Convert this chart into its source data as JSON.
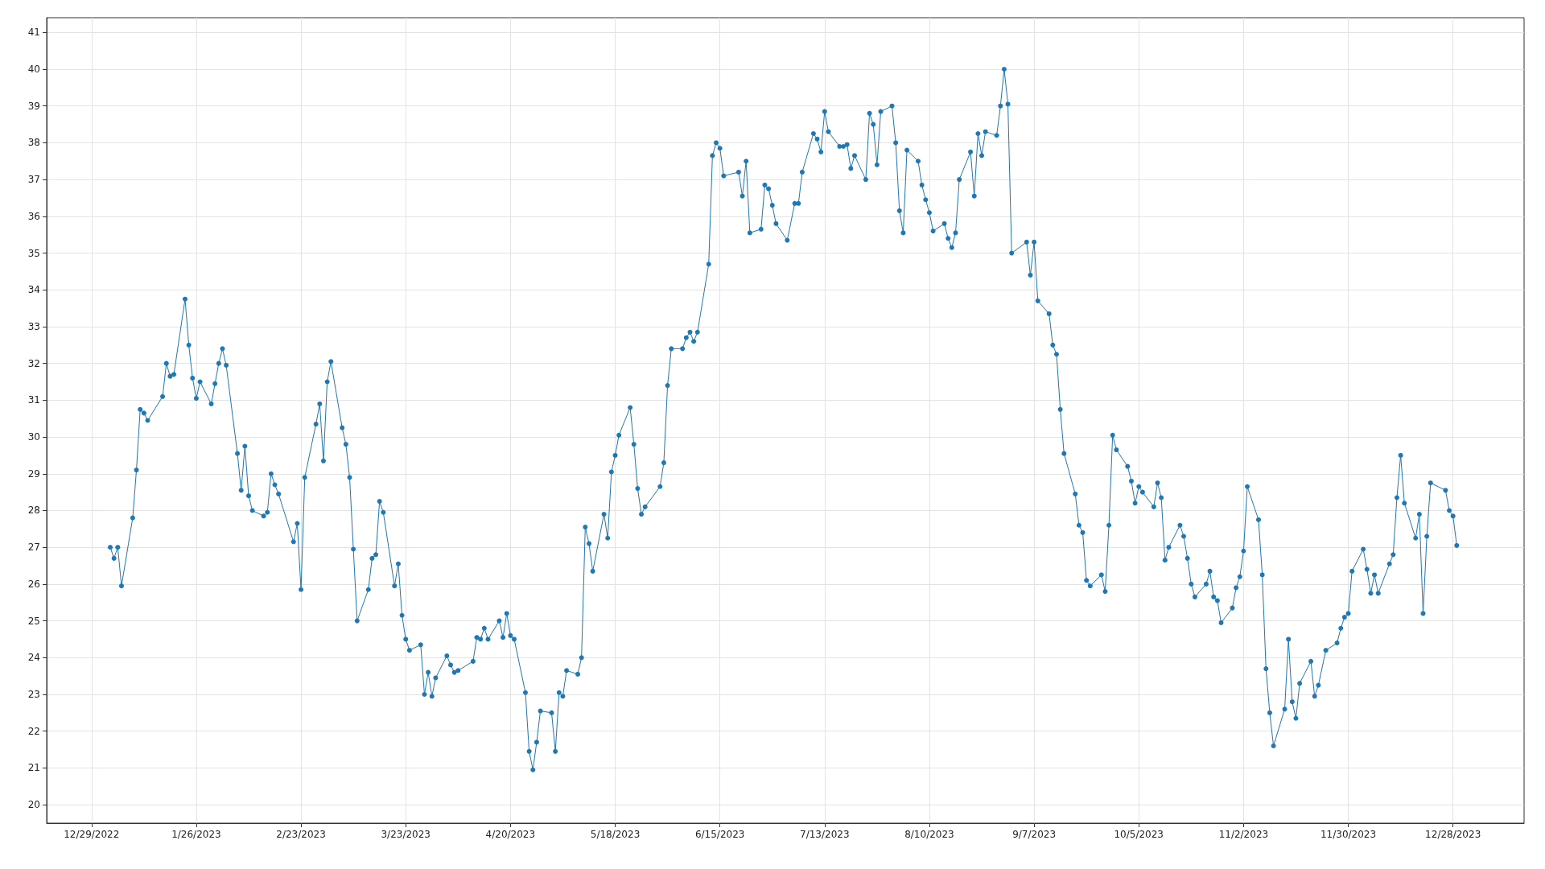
{
  "chart_data": {
    "type": "line",
    "xlim": [
      "2022-12-17",
      "2024-01-16"
    ],
    "ylim": [
      19.5,
      41.4
    ],
    "xticks": [
      {
        "value": "2022-12-29",
        "label": "12/29/2022"
      },
      {
        "value": "2023-01-26",
        "label": "1/26/2023"
      },
      {
        "value": "2023-02-23",
        "label": "2/23/2023"
      },
      {
        "value": "2023-03-23",
        "label": "3/23/2023"
      },
      {
        "value": "2023-04-20",
        "label": "4/20/2023"
      },
      {
        "value": "2023-05-18",
        "label": "5/18/2023"
      },
      {
        "value": "2023-06-15",
        "label": "6/15/2023"
      },
      {
        "value": "2023-07-13",
        "label": "7/13/2023"
      },
      {
        "value": "2023-08-10",
        "label": "8/10/2023"
      },
      {
        "value": "2023-09-07",
        "label": "9/7/2023"
      },
      {
        "value": "2023-10-05",
        "label": "10/5/2023"
      },
      {
        "value": "2023-11-02",
        "label": "11/2/2023"
      },
      {
        "value": "2023-11-30",
        "label": "11/30/2023"
      },
      {
        "value": "2023-12-28",
        "label": "12/28/2023"
      }
    ],
    "yticks": [
      20,
      21,
      22,
      23,
      24,
      25,
      26,
      27,
      28,
      29,
      30,
      31,
      32,
      33,
      34,
      35,
      36,
      37,
      38,
      39,
      40,
      41
    ],
    "grid": true,
    "marker": "circle",
    "line_style": "solid",
    "x": [
      "2023-01-03",
      "2023-01-04",
      "2023-01-05",
      "2023-01-06",
      "2023-01-09",
      "2023-01-10",
      "2023-01-11",
      "2023-01-12",
      "2023-01-13",
      "2023-01-17",
      "2023-01-18",
      "2023-01-19",
      "2023-01-20",
      "2023-01-23",
      "2023-01-24",
      "2023-01-25",
      "2023-01-26",
      "2023-01-27",
      "2023-01-30",
      "2023-01-31",
      "2023-02-01",
      "2023-02-02",
      "2023-02-03",
      "2023-02-06",
      "2023-02-07",
      "2023-02-08",
      "2023-02-09",
      "2023-02-10",
      "2023-02-13",
      "2023-02-14",
      "2023-02-15",
      "2023-02-16",
      "2023-02-17",
      "2023-02-21",
      "2023-02-22",
      "2023-02-23",
      "2023-02-24",
      "2023-02-27",
      "2023-02-28",
      "2023-03-01",
      "2023-03-02",
      "2023-03-03",
      "2023-03-06",
      "2023-03-07",
      "2023-03-08",
      "2023-03-09",
      "2023-03-10",
      "2023-03-13",
      "2023-03-14",
      "2023-03-15",
      "2023-03-16",
      "2023-03-17",
      "2023-03-20",
      "2023-03-21",
      "2023-03-22",
      "2023-03-23",
      "2023-03-24",
      "2023-03-27",
      "2023-03-28",
      "2023-03-29",
      "2023-03-30",
      "2023-03-31",
      "2023-04-03",
      "2023-04-04",
      "2023-04-05",
      "2023-04-06",
      "2023-04-10",
      "2023-04-11",
      "2023-04-12",
      "2023-04-13",
      "2023-04-14",
      "2023-04-17",
      "2023-04-18",
      "2023-04-19",
      "2023-04-20",
      "2023-04-21",
      "2023-04-24",
      "2023-04-25",
      "2023-04-26",
      "2023-04-27",
      "2023-04-28",
      "2023-05-01",
      "2023-05-02",
      "2023-05-03",
      "2023-05-04",
      "2023-05-05",
      "2023-05-08",
      "2023-05-09",
      "2023-05-10",
      "2023-05-11",
      "2023-05-12",
      "2023-05-15",
      "2023-05-16",
      "2023-05-17",
      "2023-05-18",
      "2023-05-19",
      "2023-05-22",
      "2023-05-23",
      "2023-05-24",
      "2023-05-25",
      "2023-05-26",
      "2023-05-30",
      "2023-05-31",
      "2023-06-01",
      "2023-06-02",
      "2023-06-05",
      "2023-06-06",
      "2023-06-07",
      "2023-06-08",
      "2023-06-09",
      "2023-06-12",
      "2023-06-13",
      "2023-06-14",
      "2023-06-15",
      "2023-06-16",
      "2023-06-20",
      "2023-06-21",
      "2023-06-22",
      "2023-06-23",
      "2023-06-26",
      "2023-06-27",
      "2023-06-28",
      "2023-06-29",
      "2023-06-30",
      "2023-07-03",
      "2023-07-05",
      "2023-07-06",
      "2023-07-07",
      "2023-07-10",
      "2023-07-11",
      "2023-07-12",
      "2023-07-13",
      "2023-07-14",
      "2023-07-17",
      "2023-07-18",
      "2023-07-19",
      "2023-07-20",
      "2023-07-21",
      "2023-07-24",
      "2023-07-25",
      "2023-07-26",
      "2023-07-27",
      "2023-07-28",
      "2023-07-31",
      "2023-08-01",
      "2023-08-02",
      "2023-08-03",
      "2023-08-04",
      "2023-08-07",
      "2023-08-08",
      "2023-08-09",
      "2023-08-10",
      "2023-08-11",
      "2023-08-14",
      "2023-08-15",
      "2023-08-16",
      "2023-08-17",
      "2023-08-18",
      "2023-08-21",
      "2023-08-22",
      "2023-08-23",
      "2023-08-24",
      "2023-08-25",
      "2023-08-28",
      "2023-08-29",
      "2023-08-30",
      "2023-08-31",
      "2023-09-01",
      "2023-09-05",
      "2023-09-06",
      "2023-09-07",
      "2023-09-08",
      "2023-09-11",
      "2023-09-12",
      "2023-09-13",
      "2023-09-14",
      "2023-09-15",
      "2023-09-18",
      "2023-09-19",
      "2023-09-20",
      "2023-09-21",
      "2023-09-22",
      "2023-09-25",
      "2023-09-26",
      "2023-09-27",
      "2023-09-28",
      "2023-09-29",
      "2023-10-02",
      "2023-10-03",
      "2023-10-04",
      "2023-10-05",
      "2023-10-06",
      "2023-10-09",
      "2023-10-10",
      "2023-10-11",
      "2023-10-12",
      "2023-10-13",
      "2023-10-16",
      "2023-10-17",
      "2023-10-18",
      "2023-10-19",
      "2023-10-20",
      "2023-10-23",
      "2023-10-24",
      "2023-10-25",
      "2023-10-26",
      "2023-10-27",
      "2023-10-30",
      "2023-10-31",
      "2023-11-01",
      "2023-11-02",
      "2023-11-03",
      "2023-11-06",
      "2023-11-07",
      "2023-11-08",
      "2023-11-09",
      "2023-11-10",
      "2023-11-13",
      "2023-11-14",
      "2023-11-15",
      "2023-11-16",
      "2023-11-17",
      "2023-11-20",
      "2023-11-21",
      "2023-11-22",
      "2023-11-24",
      "2023-11-27",
      "2023-11-28",
      "2023-11-29",
      "2023-11-30",
      "2023-12-01",
      "2023-12-04",
      "2023-12-05",
      "2023-12-06",
      "2023-12-07",
      "2023-12-08",
      "2023-12-11",
      "2023-12-12",
      "2023-12-13",
      "2023-12-14",
      "2023-12-15",
      "2023-12-18",
      "2023-12-19",
      "2023-12-20",
      "2023-12-21",
      "2023-12-22",
      "2023-12-26",
      "2023-12-27",
      "2023-12-28",
      "2023-12-29"
    ],
    "series": [
      {
        "color": "#1f77b4",
        "values": [
          27.0,
          26.7,
          27.0,
          25.95,
          27.8,
          29.1,
          30.75,
          30.65,
          30.45,
          31.1,
          32.0,
          31.65,
          31.7,
          33.75,
          32.5,
          31.6,
          31.05,
          31.5,
          30.9,
          31.45,
          32.0,
          32.4,
          31.95,
          29.55,
          28.55,
          29.75,
          28.4,
          28.0,
          27.85,
          27.95,
          29.0,
          28.7,
          28.45,
          27.15,
          27.65,
          25.85,
          28.9,
          30.35,
          30.9,
          29.35,
          31.5,
          32.05,
          30.25,
          29.8,
          28.9,
          26.95,
          25.0,
          25.85,
          26.7,
          26.8,
          28.25,
          27.95,
          25.95,
          26.55,
          25.15,
          24.5,
          24.2,
          24.35,
          23.0,
          23.6,
          22.95,
          23.45,
          24.05,
          23.8,
          23.6,
          23.65,
          23.9,
          24.55,
          24.5,
          24.8,
          24.5,
          25.0,
          24.55,
          25.2,
          24.6,
          24.5,
          23.05,
          21.45,
          20.95,
          21.7,
          22.55,
          22.5,
          21.45,
          23.05,
          22.95,
          23.65,
          23.55,
          24.0,
          27.55,
          27.1,
          26.35,
          27.9,
          27.25,
          29.05,
          29.5,
          30.05,
          30.8,
          29.8,
          28.6,
          27.9,
          28.1,
          28.65,
          29.3,
          31.4,
          32.4,
          32.4,
          32.7,
          32.85,
          32.6,
          32.85,
          34.7,
          37.65,
          38.0,
          37.85,
          37.1,
          37.2,
          36.55,
          37.5,
          35.55,
          35.65,
          36.85,
          36.75,
          36.3,
          35.8,
          35.35,
          36.35,
          36.35,
          37.2,
          38.25,
          38.1,
          37.75,
          38.85,
          38.3,
          37.9,
          37.9,
          37.95,
          37.3,
          37.65,
          37.0,
          38.8,
          38.5,
          37.4,
          38.85,
          39.0,
          38.0,
          36.15,
          35.55,
          37.8,
          37.5,
          36.85,
          36.45,
          36.1,
          35.6,
          35.8,
          35.4,
          35.15,
          35.55,
          37.0,
          37.75,
          36.55,
          38.25,
          37.65,
          38.3,
          38.2,
          39.0,
          40.0,
          39.05,
          35.0,
          35.3,
          34.4,
          35.3,
          33.7,
          33.35,
          32.5,
          32.25,
          30.75,
          29.55,
          28.45,
          27.6,
          27.4,
          26.1,
          25.95,
          26.25,
          25.8,
          27.6,
          30.05,
          29.65,
          29.2,
          28.8,
          28.2,
          28.65,
          28.5,
          28.1,
          28.75,
          28.35,
          26.65,
          27.0,
          27.6,
          27.3,
          26.7,
          26.0,
          25.65,
          26.0,
          26.35,
          25.65,
          25.55,
          24.95,
          25.35,
          25.9,
          26.2,
          26.9,
          28.65,
          27.75,
          26.25,
          23.7,
          22.5,
          21.6,
          22.6,
          24.5,
          22.8,
          22.35,
          23.3,
          23.9,
          22.95,
          23.25,
          24.2,
          24.4,
          24.8,
          25.1,
          25.2,
          26.35,
          26.95,
          26.4,
          25.75,
          26.25,
          25.75,
          26.55,
          26.8,
          28.35,
          29.5,
          28.2,
          27.25,
          27.9,
          25.2,
          27.3,
          28.75,
          28.55,
          28.0,
          27.85,
          27.05
        ]
      }
    ]
  }
}
